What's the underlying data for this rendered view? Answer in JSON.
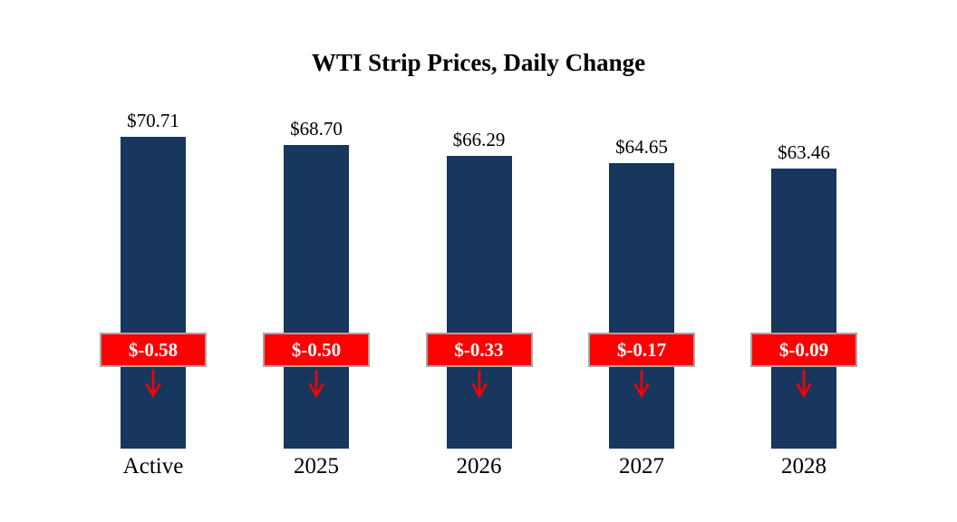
{
  "title": "WTI Strip Prices, Daily Change",
  "chart_data": {
    "type": "bar",
    "title": "WTI Strip Prices, Daily Change",
    "categories": [
      "Active",
      "2025",
      "2026",
      "2027",
      "2028"
    ],
    "series": [
      {
        "name": "WTI Strip Price ($)",
        "values": [
          70.71,
          68.7,
          66.29,
          64.65,
          63.46
        ]
      },
      {
        "name": "Daily Change ($)",
        "values": [
          -0.58,
          -0.5,
          -0.33,
          -0.17,
          -0.09
        ]
      }
    ],
    "price_labels": [
      "$70.71",
      "$68.70",
      "$66.29",
      "$64.65",
      "$63.46"
    ],
    "change_labels": [
      "$-0.58",
      "$-0.50",
      "$-0.33",
      "$-0.17",
      "$-0.09"
    ],
    "xlabel": "",
    "ylabel": "",
    "ylim": [
      0,
      75
    ],
    "grid": false,
    "legend": "none",
    "bar_color": "#17375E",
    "change_badge_color": "#FF0000",
    "change_badge_border_color": "#A6A6A6",
    "change_text_color": "#FFFFFF",
    "arrow_icon": "down-arrow"
  }
}
